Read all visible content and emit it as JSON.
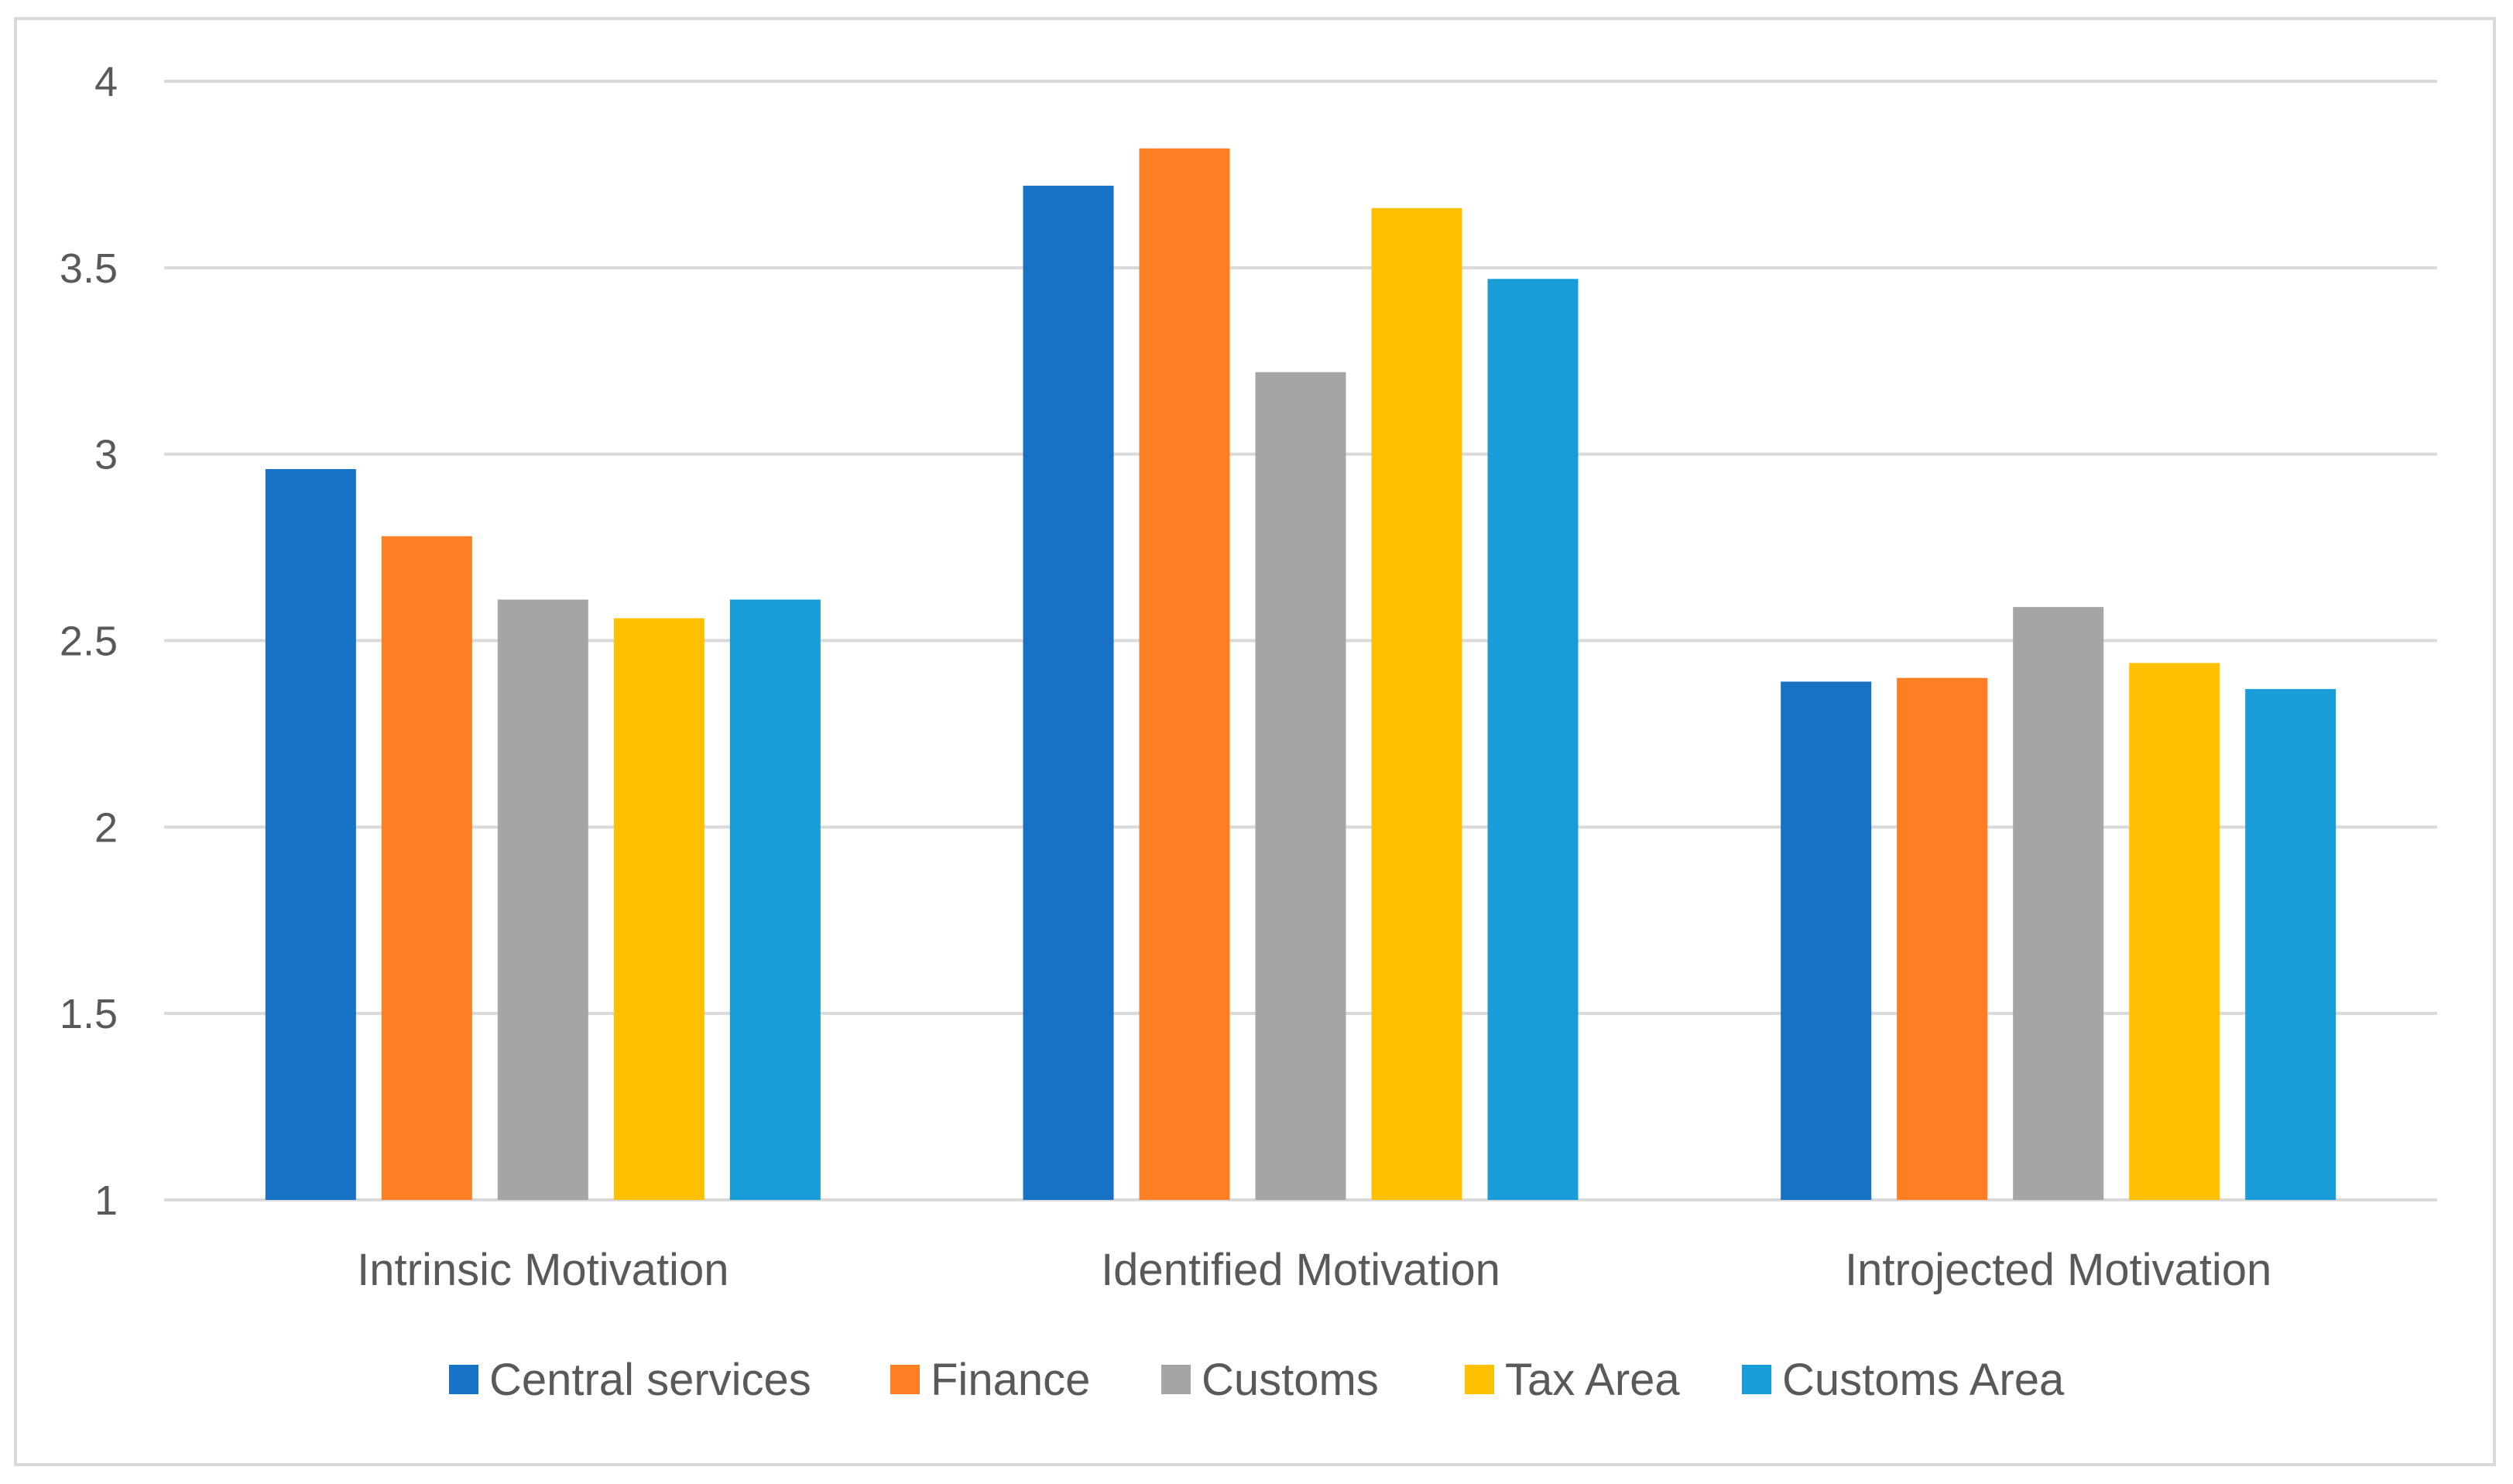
{
  "chart_data": {
    "type": "bar",
    "categories": [
      "Intrinsic Motivation",
      "Identified Motivation",
      "Introjected Motivation"
    ],
    "series": [
      {
        "name": "Central services",
        "color": "#1771c4",
        "values": [
          2.96,
          3.72,
          2.39
        ]
      },
      {
        "name": "Finance",
        "color": "#fe7e24",
        "values": [
          2.78,
          3.82,
          2.4
        ]
      },
      {
        "name": "Customs",
        "color": "#a5a5a5",
        "values": [
          2.61,
          3.22,
          2.59
        ]
      },
      {
        "name": "Tax Area",
        "color": "#fec000",
        "values": [
          2.56,
          3.66,
          2.44
        ]
      },
      {
        "name": "Customs Area",
        "color": "#189dd8",
        "values": [
          2.61,
          3.47,
          2.37
        ]
      }
    ],
    "ylim": [
      1,
      4
    ],
    "yticks": [
      1,
      1.5,
      2,
      2.5,
      3,
      3.5,
      4
    ],
    "ytick_labels": [
      "1",
      "1.5",
      "2",
      "2.5",
      "3",
      "3.5",
      "4"
    ],
    "grid": true,
    "legend_position": "bottom",
    "gridline_color": "#d9d9d9"
  }
}
